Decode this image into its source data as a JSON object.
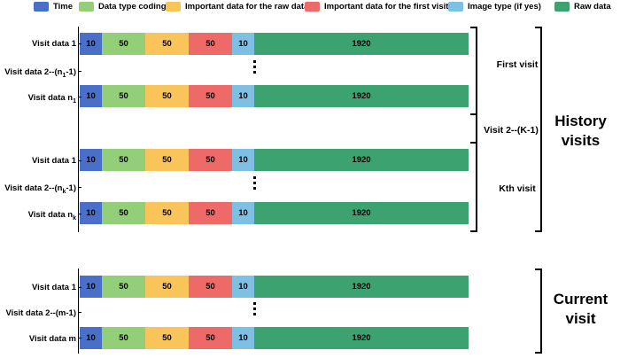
{
  "colors": {
    "time": "#4A6FC9",
    "coding": "#93CE79",
    "raw_important": "#F9C45A",
    "first_important": "#EE6A69",
    "image_type": "#7DC0E3",
    "raw": "#3CA26F"
  },
  "legend": [
    {
      "key": "time",
      "label": "Time"
    },
    {
      "key": "coding",
      "label": "Data type coding"
    },
    {
      "key": "raw_important",
      "label": "Important data for the raw data"
    },
    {
      "key": "first_important",
      "label": "Important data for the first visit"
    },
    {
      "key": "image_type",
      "label": "Image type (if yes)"
    },
    {
      "key": "raw",
      "label": "Raw data"
    }
  ],
  "segments": [
    {
      "key": "time",
      "value": "10"
    },
    {
      "key": "coding",
      "value": "50"
    },
    {
      "key": "raw_important",
      "value": "50"
    },
    {
      "key": "first_important",
      "value": "50"
    },
    {
      "key": "image_type",
      "value": "10"
    },
    {
      "key": "raw",
      "value": "1920"
    }
  ],
  "rows": {
    "first_1": {
      "text": "Visit data 1"
    },
    "first_mid": {
      "pre": "Visit data 2--(n",
      "sub": "1",
      "post": "-1)"
    },
    "first_n": {
      "pre": "Visit data n",
      "sub": "1",
      "post": ""
    },
    "kth_1": {
      "text": "Visit data 1"
    },
    "kth_mid": {
      "pre": "Visit data 2--(n",
      "sub": "k",
      "post": "-1)"
    },
    "kth_n": {
      "pre": "Visit data n",
      "sub": "k",
      "post": ""
    },
    "cur_1": {
      "text": "Visit data 1"
    },
    "cur_mid": {
      "text": "Visit data 2--(m-1)"
    },
    "cur_m": {
      "text": "Visit data m"
    }
  },
  "brackets": {
    "first_visit": "First visit",
    "middle_visits": "Visit 2--(K-1)",
    "kth_visit": "Kth visit",
    "history": "History visits",
    "current": "Current visit"
  }
}
